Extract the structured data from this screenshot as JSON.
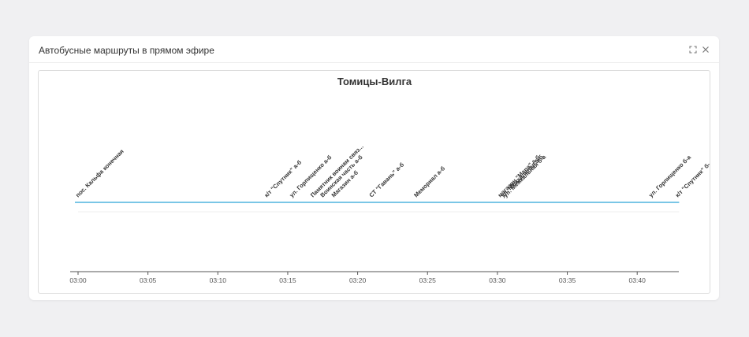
{
  "dialog": {
    "title": "Автобусные маршруты в прямом эфире",
    "expand_icon": "expand-icon",
    "close_icon": "close-icon"
  },
  "chart_data": {
    "type": "timeline",
    "title": "Томицы-Вилга",
    "x_ticks": [
      "03:00",
      "03:05",
      "03:10",
      "03:15",
      "03:20",
      "03:25",
      "03:30",
      "03:35",
      "03:40"
    ],
    "x_range_minutes": [
      0,
      43
    ],
    "grid": false,
    "line_color": "#4fb3dd",
    "stops": [
      {
        "label": "пос. Кальфа конечная",
        "minute": 0
      },
      {
        "label": "к/т \"Спутник\" а-б",
        "minute": 13.5
      },
      {
        "label": "ул. Горпищенко а-б",
        "minute": 15.3
      },
      {
        "label": "Памятник воинам связ...",
        "minute": 16.8
      },
      {
        "label": "Воинская часть а-б",
        "minute": 17.5
      },
      {
        "label": "Магазин а-б",
        "minute": 18.3
      },
      {
        "label": "СТ \"Гавань\" а-б",
        "minute": 21.0
      },
      {
        "label": "Мемориал а-б",
        "minute": 24.2
      },
      {
        "label": "магазин \"Мара\" а-б",
        "minute": 30.2
      },
      {
        "label": "ул. Межкальная а-б",
        "minute": 30.4
      },
      {
        "label": "ул. Межкальная б-а",
        "minute": 30.6
      },
      {
        "label": "ул. Горпищенко б-а",
        "minute": 41.0
      },
      {
        "label": "к/т \"Спутник\" б-...",
        "minute": 42.9
      }
    ]
  }
}
